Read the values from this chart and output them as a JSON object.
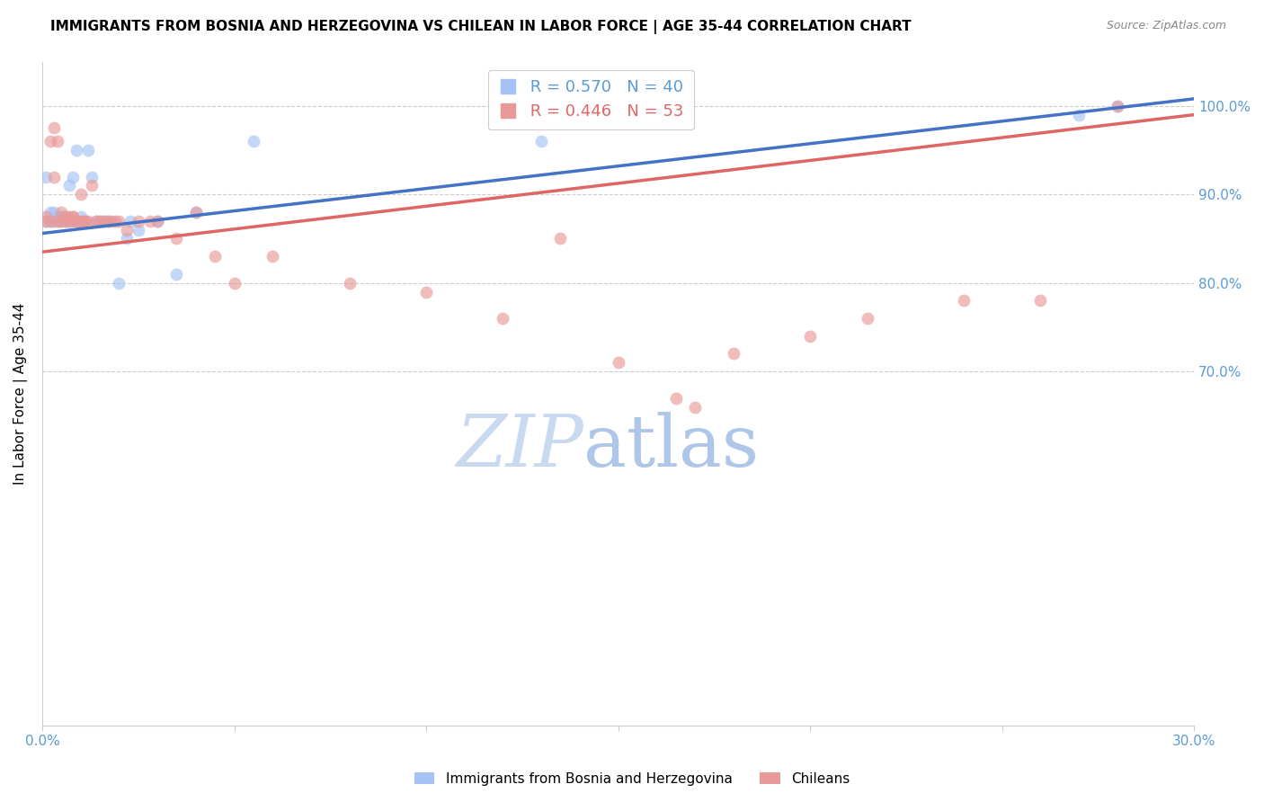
{
  "title": "IMMIGRANTS FROM BOSNIA AND HERZEGOVINA VS CHILEAN IN LABOR FORCE | AGE 35-44 CORRELATION CHART",
  "source": "Source: ZipAtlas.com",
  "ylabel": "In Labor Force | Age 35-44",
  "xlim": [
    0.0,
    0.3
  ],
  "ylim": [
    0.3,
    1.05
  ],
  "yticks": [
    0.7,
    0.8,
    0.9,
    1.0
  ],
  "ytick_labels": [
    "70.0%",
    "80.0%",
    "90.0%",
    "100.0%"
  ],
  "xticks": [
    0.0,
    0.05,
    0.1,
    0.15,
    0.2,
    0.25,
    0.3
  ],
  "xtick_labels": [
    "0.0%",
    "",
    "",
    "",
    "",
    "",
    "30.0%"
  ],
  "legend_bosnia_R": "R = 0.570",
  "legend_bosnia_N": "N = 40",
  "legend_chile_R": "R = 0.446",
  "legend_chile_N": "N = 53",
  "bosnia_color": "#a4c2f4",
  "chile_color": "#ea9999",
  "bosnia_line_color": "#4472c4",
  "chile_line_color": "#e06666",
  "bosnia_scatter_x": [
    0.001,
    0.001,
    0.002,
    0.002,
    0.003,
    0.003,
    0.004,
    0.004,
    0.005,
    0.005,
    0.005,
    0.006,
    0.006,
    0.007,
    0.007,
    0.008,
    0.008,
    0.009,
    0.009,
    0.01,
    0.01,
    0.011,
    0.012,
    0.013,
    0.014,
    0.015,
    0.016,
    0.017,
    0.02,
    0.022,
    0.023,
    0.025,
    0.03,
    0.035,
    0.04,
    0.055,
    0.13,
    0.15,
    0.27,
    0.28
  ],
  "bosnia_scatter_y": [
    0.87,
    0.92,
    0.87,
    0.88,
    0.87,
    0.88,
    0.87,
    0.875,
    0.875,
    0.87,
    0.875,
    0.87,
    0.875,
    0.91,
    0.87,
    0.92,
    0.87,
    0.87,
    0.95,
    0.87,
    0.875,
    0.87,
    0.95,
    0.92,
    0.87,
    0.87,
    0.87,
    0.87,
    0.8,
    0.85,
    0.87,
    0.86,
    0.87,
    0.81,
    0.88,
    0.96,
    0.96,
    0.99,
    0.99,
    1.0
  ],
  "chile_scatter_x": [
    0.001,
    0.001,
    0.002,
    0.002,
    0.003,
    0.003,
    0.004,
    0.004,
    0.005,
    0.005,
    0.006,
    0.006,
    0.007,
    0.007,
    0.008,
    0.008,
    0.009,
    0.009,
    0.01,
    0.01,
    0.011,
    0.011,
    0.012,
    0.013,
    0.014,
    0.015,
    0.016,
    0.017,
    0.018,
    0.019,
    0.02,
    0.022,
    0.025,
    0.028,
    0.03,
    0.035,
    0.04,
    0.045,
    0.05,
    0.06,
    0.08,
    0.1,
    0.12,
    0.135,
    0.15,
    0.165,
    0.17,
    0.18,
    0.2,
    0.215,
    0.24,
    0.26,
    0.28
  ],
  "chile_scatter_y": [
    0.87,
    0.875,
    0.96,
    0.87,
    0.92,
    0.975,
    0.87,
    0.96,
    0.87,
    0.88,
    0.87,
    0.875,
    0.87,
    0.875,
    0.875,
    0.875,
    0.87,
    0.87,
    0.87,
    0.9,
    0.87,
    0.87,
    0.87,
    0.91,
    0.87,
    0.87,
    0.87,
    0.87,
    0.87,
    0.87,
    0.87,
    0.86,
    0.87,
    0.87,
    0.87,
    0.85,
    0.88,
    0.83,
    0.8,
    0.83,
    0.8,
    0.79,
    0.76,
    0.85,
    0.71,
    0.67,
    0.66,
    0.72,
    0.74,
    0.76,
    0.78,
    0.78,
    1.0
  ],
  "background_color": "#ffffff",
  "grid_color": "#cccccc",
  "axis_color": "#cccccc",
  "title_fontsize": 11,
  "tick_color": "#5b9bd5",
  "watermark_zip": "ZIP",
  "watermark_atlas": "atlas",
  "watermark_color_zip": "#c8d9f0",
  "watermark_color_atlas": "#aec6e8",
  "legend_color_bosnia": "#5b9bd5",
  "legend_color_chile": "#e06666"
}
